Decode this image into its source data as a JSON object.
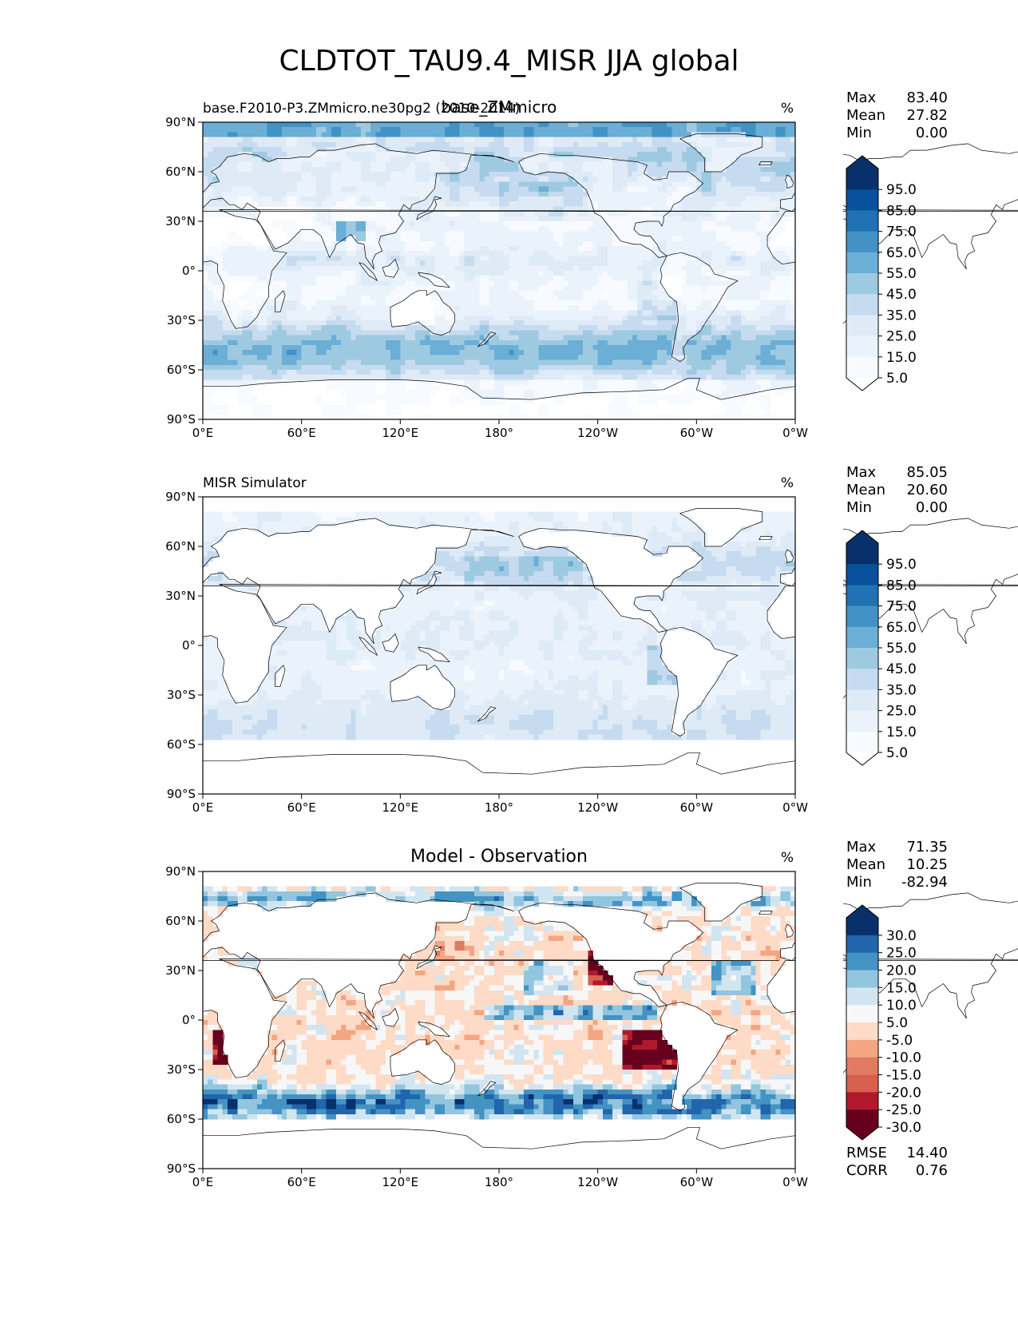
{
  "title": "CLDTOT_TAU9.4_MISR JJA global",
  "chart_data": [
    {
      "type": "heatmap",
      "subtitle_left": "base.F2010-P3.ZMmicro.ne30pg2 (2010-2014)",
      "subtitle_center": "base_ZMmicro",
      "units": "%",
      "stats": [
        {
          "label": "Max",
          "value": "83.40"
        },
        {
          "label": "Mean",
          "value": "27.82"
        },
        {
          "label": "Min",
          "value": "0.00"
        }
      ],
      "colorbar": {
        "labels": [
          "95.0",
          "85.0",
          "75.0",
          "65.0",
          "55.0",
          "45.0",
          "35.0",
          "25.0",
          "15.0",
          "5.0"
        ],
        "colors": [
          "#08306b",
          "#08519c",
          "#2171b5",
          "#4292c6",
          "#6baed6",
          "#9ecae1",
          "#c6dbef",
          "#deebf7",
          "#eaf2fb",
          "#f7fbff"
        ],
        "over": "#08306b",
        "under": "#ffffff"
      },
      "xticks": [
        "0°E",
        "60°E",
        "120°E",
        "180°",
        "120°W",
        "60°W",
        "0°W"
      ],
      "yticks": [
        "90°N",
        "60°N",
        "30°N",
        "0°",
        "30°S",
        "60°S",
        "90°S"
      ],
      "xlim": [
        0,
        360
      ],
      "ylim": [
        -90,
        90
      ],
      "field": "model"
    },
    {
      "type": "heatmap",
      "subtitle_left": "MISR Simulator",
      "units": "%",
      "stats": [
        {
          "label": "Max",
          "value": "85.05"
        },
        {
          "label": "Mean",
          "value": "20.60"
        },
        {
          "label": "Min",
          "value": "0.00"
        }
      ],
      "colorbar": {
        "labels": [
          "95.0",
          "85.0",
          "75.0",
          "65.0",
          "55.0",
          "45.0",
          "35.0",
          "25.0",
          "15.0",
          "5.0"
        ],
        "colors": [
          "#08306b",
          "#08519c",
          "#2171b5",
          "#4292c6",
          "#6baed6",
          "#9ecae1",
          "#c6dbef",
          "#deebf7",
          "#eaf2fb",
          "#f7fbff"
        ],
        "over": "#08306b",
        "under": "#ffffff"
      },
      "xticks": [
        "0°E",
        "60°E",
        "120°E",
        "180°",
        "120°W",
        "60°W",
        "0°W"
      ],
      "yticks": [
        "90°N",
        "60°N",
        "30°N",
        "0°",
        "30°S",
        "60°S",
        "90°S"
      ],
      "xlim": [
        0,
        360
      ],
      "ylim": [
        -90,
        90
      ],
      "field": "obs"
    },
    {
      "type": "heatmap",
      "subtitle_center": "Model - Observation",
      "units": "%",
      "stats": [
        {
          "label": "Max",
          "value": "71.35"
        },
        {
          "label": "Mean",
          "value": "10.25"
        },
        {
          "label": "Min",
          "value": "-82.94"
        }
      ],
      "colorbar": {
        "labels": [
          "30.0",
          "25.0",
          "20.0",
          "15.0",
          "10.0",
          "5.0",
          "-5.0",
          "-10.0",
          "-15.0",
          "-20.0",
          "-25.0",
          "-30.0"
        ],
        "colors": [
          "#08306b",
          "#2166ac",
          "#4393c3",
          "#92c5de",
          "#d1e5f0",
          "#f7f7f7",
          "#fddbc7",
          "#f4a582",
          "#e07b62",
          "#d6604d",
          "#b2182b",
          "#67001f"
        ],
        "over": "#08306b",
        "under": "#67001f"
      },
      "footer_stats": [
        {
          "label": "RMSE",
          "value": "14.40"
        },
        {
          "label": "CORR",
          "value": "0.76"
        }
      ],
      "xticks": [
        "0°E",
        "60°E",
        "120°E",
        "180°",
        "120°W",
        "60°W",
        "0°W"
      ],
      "yticks": [
        "90°N",
        "60°N",
        "30°N",
        "0°",
        "30°S",
        "60°S",
        "90°S"
      ],
      "xlim": [
        0,
        360
      ],
      "ylim": [
        -90,
        90
      ],
      "field": "diff"
    }
  ]
}
